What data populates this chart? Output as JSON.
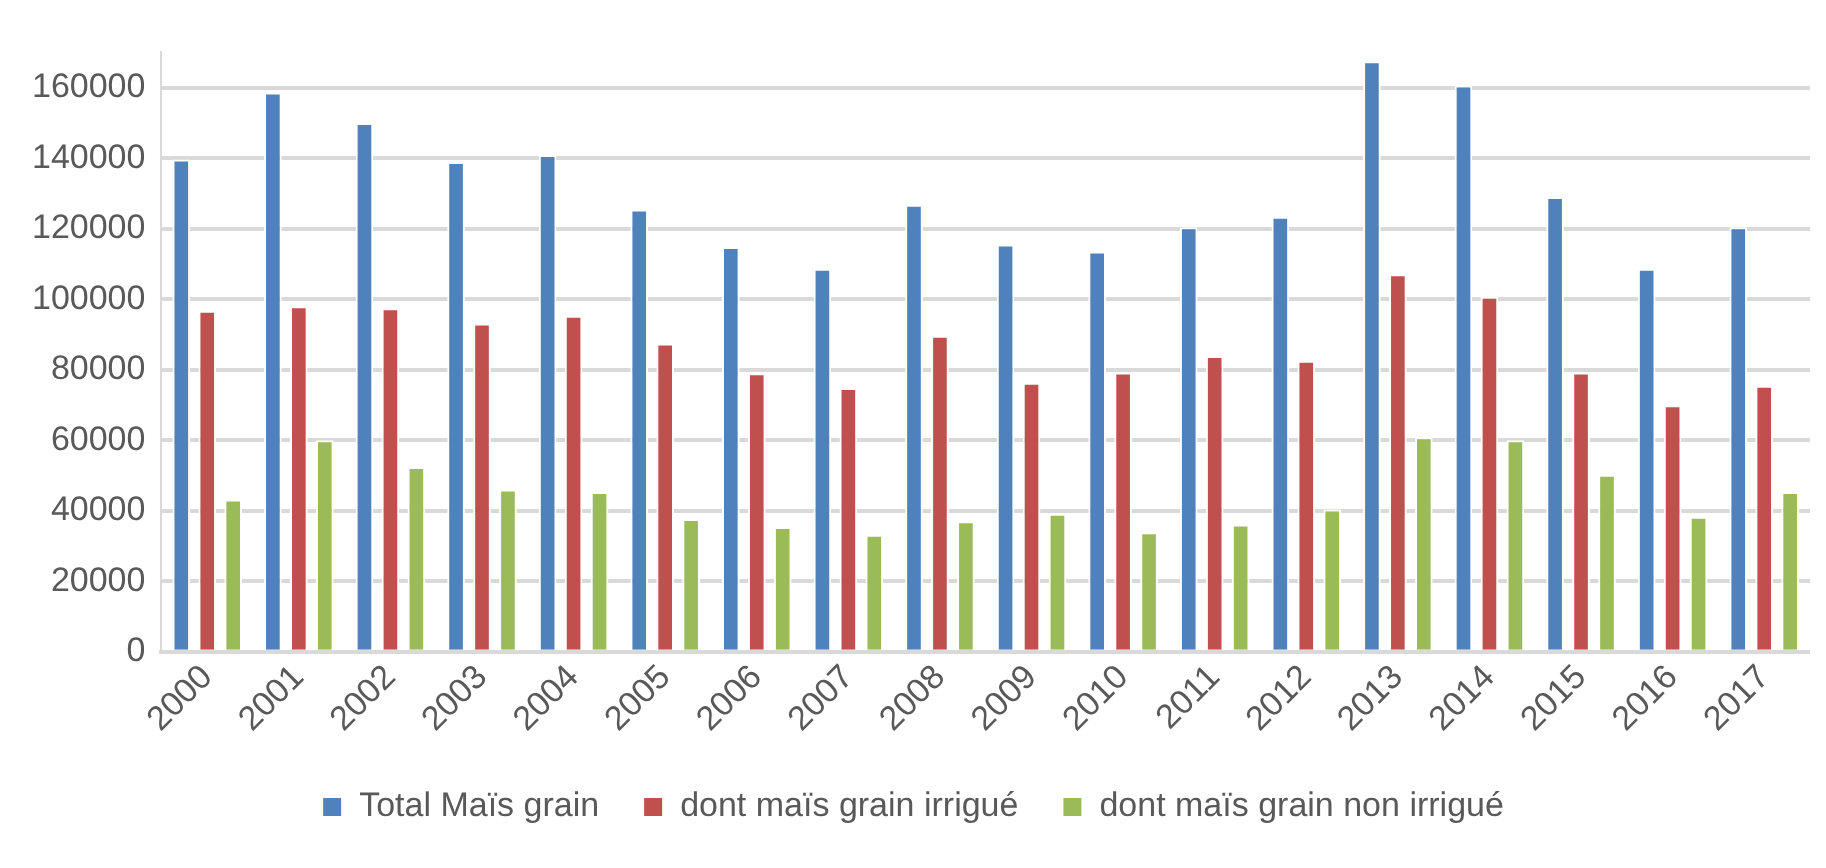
{
  "chart_data": {
    "type": "bar",
    "categories": [
      "2000",
      "2001",
      "2002",
      "2003",
      "2004",
      "2005",
      "2006",
      "2007",
      "2008",
      "2009",
      "2010",
      "2011",
      "2012",
      "2013",
      "2014",
      "2015",
      "2016",
      "2017"
    ],
    "series": [
      {
        "name": "Total Maïs grain",
        "color": "#4f81bd",
        "values": [
          139600,
          158600,
          150000,
          138900,
          140900,
          125400,
          114800,
          108600,
          126800,
          115500,
          113500,
          120400,
          123400,
          167500,
          160600,
          129000,
          108600,
          120400
        ]
      },
      {
        "name": "dont maïs grain irrigué",
        "color": "#c0504d",
        "values": [
          96700,
          98000,
          97400,
          93100,
          95300,
          87400,
          79000,
          74800,
          89600,
          76300,
          79200,
          83900,
          82500,
          107100,
          100700,
          79200,
          69900,
          75400
        ]
      },
      {
        "name": "dont maïs grain non irrigué",
        "color": "#9bbb59",
        "values": [
          43200,
          60000,
          52400,
          46000,
          45300,
          37600,
          35400,
          33200,
          37000,
          39100,
          33900,
          36100,
          40300,
          60800,
          60000,
          50200,
          38300,
          45300
        ]
      }
    ],
    "ylim": [
      0,
      170000
    ],
    "yticks": [
      0,
      20000,
      40000,
      60000,
      80000,
      100000,
      120000,
      140000,
      160000
    ],
    "grid": "y",
    "legend": "bottom"
  }
}
